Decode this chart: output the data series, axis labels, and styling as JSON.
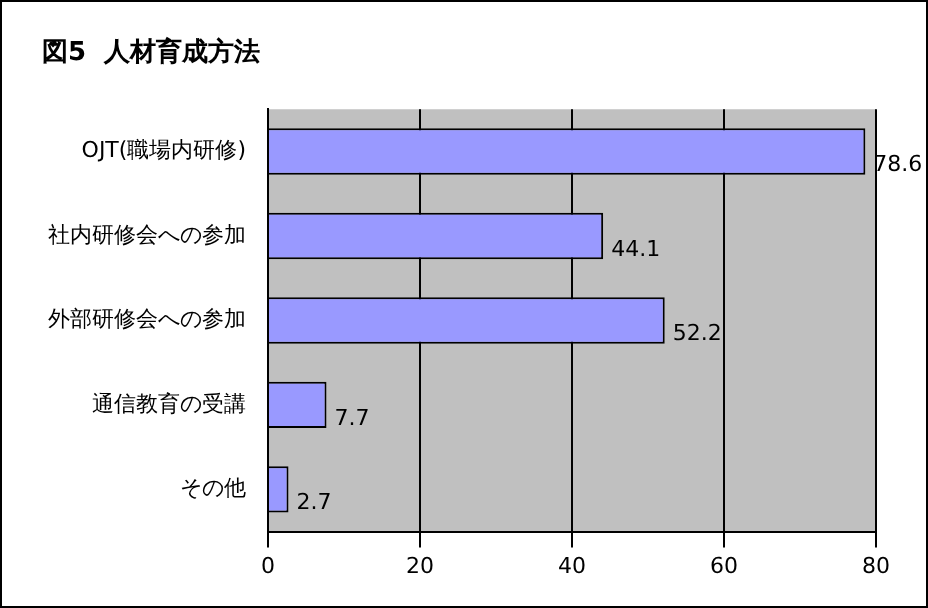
{
  "chart_data": {
    "type": "bar",
    "orientation": "horizontal",
    "title": "図5  人材育成方法",
    "categories": [
      "OJT(職場内研修)",
      "社内研修会への参加",
      "外部研修会への参加",
      "通信教育の受講",
      "その他"
    ],
    "values": [
      78.6,
      44.1,
      52.2,
      7.7,
      2.7
    ],
    "color": "#9999ff",
    "xlim": [
      0,
      80
    ],
    "xticks": [
      0,
      20,
      40,
      60,
      80
    ],
    "grid": "x",
    "data_labels": true,
    "legend": false
  }
}
